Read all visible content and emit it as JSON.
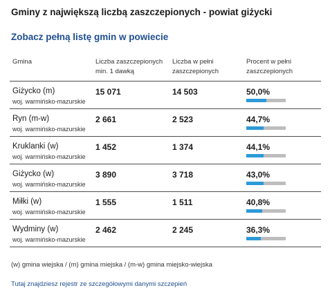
{
  "title": "Gminy z największą liczbą zaszczepionych - powiat giżycki",
  "full_list_link": "Zobacz pełną listę gmin w powiecie",
  "columns": {
    "gmina": "Gmina",
    "dawka": "Liczba zaszczepionych min. 1 dawką",
    "pelni": "Liczba w pełni zaszczepionych",
    "procent": "Procent w pełni zaszczepionych"
  },
  "rows": [
    {
      "name": "Giżycko (m)",
      "region": "woj. warmińsko-mazurskie",
      "dawka": "15 071",
      "pelni": "14 503",
      "procent": "50,0%",
      "pct_value": 50.0
    },
    {
      "name": "Ryn (m-w)",
      "region": "woj. warmińsko-mazurskie",
      "dawka": "2 661",
      "pelni": "2 523",
      "procent": "44,7%",
      "pct_value": 44.7
    },
    {
      "name": "Kruklanki (w)",
      "region": "woj. warmińsko-mazurskie",
      "dawka": "1 452",
      "pelni": "1 374",
      "procent": "44,1%",
      "pct_value": 44.1
    },
    {
      "name": "Giżycko (w)",
      "region": "woj. warmińsko-mazurskie",
      "dawka": "3 890",
      "pelni": "3 718",
      "procent": "43,0%",
      "pct_value": 43.0
    },
    {
      "name": "Miłki (w)",
      "region": "woj. warmińsko-mazurskie",
      "dawka": "1 555",
      "pelni": "1 511",
      "procent": "40,8%",
      "pct_value": 40.8
    },
    {
      "name": "Wydminy (w)",
      "region": "woj. warmińsko-mazurskie",
      "dawka": "2 462",
      "pelni": "2 245",
      "procent": "36,3%",
      "pct_value": 36.3
    }
  ],
  "legend": "(w) gmina wiejska / (m) gmina miejska / (m-w) gmina miejsko-wiejska",
  "registry_link": "Tutaj znajdziesz rejestr ze szczegółowymi danymi szczepień",
  "colors": {
    "bar_fill": "#2c9ad8",
    "bar_track": "#bdbdbd",
    "link": "#1f4e8f"
  }
}
